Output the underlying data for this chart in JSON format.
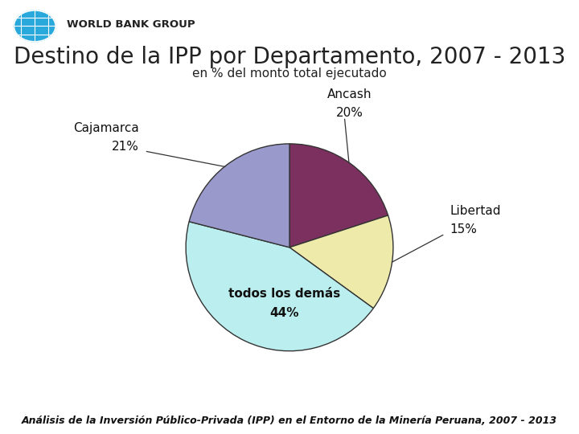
{
  "title": "Destino de la IPP por Departamento, 2007 - 2013",
  "subtitle": "en % del monto total ejecutado",
  "footer": "Análisis de la Inversión Público-Privada (IPP) en el Entorno de la Minería Peruana, 2007 - 2013",
  "slices": [
    {
      "label": "Ancash",
      "pct": 20,
      "color": "#7B3060"
    },
    {
      "label": "Libertad",
      "pct": 15,
      "color": "#EEEAAA"
    },
    {
      "label": "todos los demás",
      "pct": 44,
      "color": "#BBEEEE"
    },
    {
      "label": "Cajamarca",
      "pct": 21,
      "color": "#9999CC"
    }
  ],
  "bg_color": "#FFFFFF",
  "title_color": "#222222",
  "title_fontsize": 20,
  "subtitle_fontsize": 11,
  "footer_fontsize": 9,
  "label_fontsize": 11,
  "edge_color": "#333333"
}
